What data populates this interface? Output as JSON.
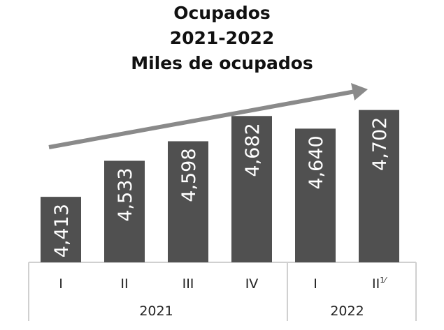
{
  "chart_data": {
    "type": "bar",
    "title": [
      "Ocupados",
      "2021-2022",
      "Miles de ocupados"
    ],
    "categories": [
      "I",
      "II",
      "III",
      "IV",
      "I",
      "II"
    ],
    "category_superscripts": [
      "",
      "",
      "",
      "",
      "",
      "1⁄"
    ],
    "groups": [
      {
        "label": "2021",
        "count": 4
      },
      {
        "label": "2022",
        "count": 2
      }
    ],
    "values": [
      4413,
      4533,
      4598,
      4682,
      4640,
      4702
    ],
    "value_labels": [
      "4,413",
      "4,533",
      "4,598",
      "4,682",
      "4,640",
      "4,702"
    ],
    "xlabel": "",
    "ylabel": "",
    "ylim": [
      4195,
      4750
    ],
    "grid": false,
    "annotation": "upward trend arrow",
    "colors": {
      "bar": "#505050",
      "arrow": "#8a8a8a",
      "axis": "#d0d0d0",
      "label": "#ffffff"
    }
  }
}
